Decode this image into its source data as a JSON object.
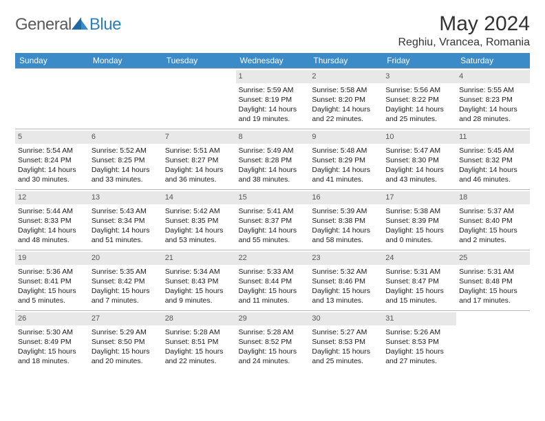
{
  "brand": {
    "part1": "General",
    "part2": "Blue"
  },
  "title": "May 2024",
  "location": "Reghiu, Vrancea, Romania",
  "colors": {
    "header_bg": "#3b8bc9",
    "header_text": "#ffffff",
    "daynum_bg": "#e8e8e8",
    "daynum_text": "#555555",
    "border": "#b8b8b8",
    "logo_gray": "#5a5a5a",
    "logo_blue": "#2a7fbf"
  },
  "weekdays": [
    "Sunday",
    "Monday",
    "Tuesday",
    "Wednesday",
    "Thursday",
    "Friday",
    "Saturday"
  ],
  "weeks": [
    [
      {
        "blank": true
      },
      {
        "blank": true
      },
      {
        "blank": true
      },
      {
        "day": "1",
        "sunrise": "5:59 AM",
        "sunset": "8:19 PM",
        "daylight_a": "Daylight: 14 hours",
        "daylight_b": "and 19 minutes."
      },
      {
        "day": "2",
        "sunrise": "5:58 AM",
        "sunset": "8:20 PM",
        "daylight_a": "Daylight: 14 hours",
        "daylight_b": "and 22 minutes."
      },
      {
        "day": "3",
        "sunrise": "5:56 AM",
        "sunset": "8:22 PM",
        "daylight_a": "Daylight: 14 hours",
        "daylight_b": "and 25 minutes."
      },
      {
        "day": "4",
        "sunrise": "5:55 AM",
        "sunset": "8:23 PM",
        "daylight_a": "Daylight: 14 hours",
        "daylight_b": "and 28 minutes."
      }
    ],
    [
      {
        "day": "5",
        "sunrise": "5:54 AM",
        "sunset": "8:24 PM",
        "daylight_a": "Daylight: 14 hours",
        "daylight_b": "and 30 minutes."
      },
      {
        "day": "6",
        "sunrise": "5:52 AM",
        "sunset": "8:25 PM",
        "daylight_a": "Daylight: 14 hours",
        "daylight_b": "and 33 minutes."
      },
      {
        "day": "7",
        "sunrise": "5:51 AM",
        "sunset": "8:27 PM",
        "daylight_a": "Daylight: 14 hours",
        "daylight_b": "and 36 minutes."
      },
      {
        "day": "8",
        "sunrise": "5:49 AM",
        "sunset": "8:28 PM",
        "daylight_a": "Daylight: 14 hours",
        "daylight_b": "and 38 minutes."
      },
      {
        "day": "9",
        "sunrise": "5:48 AM",
        "sunset": "8:29 PM",
        "daylight_a": "Daylight: 14 hours",
        "daylight_b": "and 41 minutes."
      },
      {
        "day": "10",
        "sunrise": "5:47 AM",
        "sunset": "8:30 PM",
        "daylight_a": "Daylight: 14 hours",
        "daylight_b": "and 43 minutes."
      },
      {
        "day": "11",
        "sunrise": "5:45 AM",
        "sunset": "8:32 PM",
        "daylight_a": "Daylight: 14 hours",
        "daylight_b": "and 46 minutes."
      }
    ],
    [
      {
        "day": "12",
        "sunrise": "5:44 AM",
        "sunset": "8:33 PM",
        "daylight_a": "Daylight: 14 hours",
        "daylight_b": "and 48 minutes."
      },
      {
        "day": "13",
        "sunrise": "5:43 AM",
        "sunset": "8:34 PM",
        "daylight_a": "Daylight: 14 hours",
        "daylight_b": "and 51 minutes."
      },
      {
        "day": "14",
        "sunrise": "5:42 AM",
        "sunset": "8:35 PM",
        "daylight_a": "Daylight: 14 hours",
        "daylight_b": "and 53 minutes."
      },
      {
        "day": "15",
        "sunrise": "5:41 AM",
        "sunset": "8:37 PM",
        "daylight_a": "Daylight: 14 hours",
        "daylight_b": "and 55 minutes."
      },
      {
        "day": "16",
        "sunrise": "5:39 AM",
        "sunset": "8:38 PM",
        "daylight_a": "Daylight: 14 hours",
        "daylight_b": "and 58 minutes."
      },
      {
        "day": "17",
        "sunrise": "5:38 AM",
        "sunset": "8:39 PM",
        "daylight_a": "Daylight: 15 hours",
        "daylight_b": "and 0 minutes."
      },
      {
        "day": "18",
        "sunrise": "5:37 AM",
        "sunset": "8:40 PM",
        "daylight_a": "Daylight: 15 hours",
        "daylight_b": "and 2 minutes."
      }
    ],
    [
      {
        "day": "19",
        "sunrise": "5:36 AM",
        "sunset": "8:41 PM",
        "daylight_a": "Daylight: 15 hours",
        "daylight_b": "and 5 minutes."
      },
      {
        "day": "20",
        "sunrise": "5:35 AM",
        "sunset": "8:42 PM",
        "daylight_a": "Daylight: 15 hours",
        "daylight_b": "and 7 minutes."
      },
      {
        "day": "21",
        "sunrise": "5:34 AM",
        "sunset": "8:43 PM",
        "daylight_a": "Daylight: 15 hours",
        "daylight_b": "and 9 minutes."
      },
      {
        "day": "22",
        "sunrise": "5:33 AM",
        "sunset": "8:44 PM",
        "daylight_a": "Daylight: 15 hours",
        "daylight_b": "and 11 minutes."
      },
      {
        "day": "23",
        "sunrise": "5:32 AM",
        "sunset": "8:46 PM",
        "daylight_a": "Daylight: 15 hours",
        "daylight_b": "and 13 minutes."
      },
      {
        "day": "24",
        "sunrise": "5:31 AM",
        "sunset": "8:47 PM",
        "daylight_a": "Daylight: 15 hours",
        "daylight_b": "and 15 minutes."
      },
      {
        "day": "25",
        "sunrise": "5:31 AM",
        "sunset": "8:48 PM",
        "daylight_a": "Daylight: 15 hours",
        "daylight_b": "and 17 minutes."
      }
    ],
    [
      {
        "day": "26",
        "sunrise": "5:30 AM",
        "sunset": "8:49 PM",
        "daylight_a": "Daylight: 15 hours",
        "daylight_b": "and 18 minutes."
      },
      {
        "day": "27",
        "sunrise": "5:29 AM",
        "sunset": "8:50 PM",
        "daylight_a": "Daylight: 15 hours",
        "daylight_b": "and 20 minutes."
      },
      {
        "day": "28",
        "sunrise": "5:28 AM",
        "sunset": "8:51 PM",
        "daylight_a": "Daylight: 15 hours",
        "daylight_b": "and 22 minutes."
      },
      {
        "day": "29",
        "sunrise": "5:28 AM",
        "sunset": "8:52 PM",
        "daylight_a": "Daylight: 15 hours",
        "daylight_b": "and 24 minutes."
      },
      {
        "day": "30",
        "sunrise": "5:27 AM",
        "sunset": "8:53 PM",
        "daylight_a": "Daylight: 15 hours",
        "daylight_b": "and 25 minutes."
      },
      {
        "day": "31",
        "sunrise": "5:26 AM",
        "sunset": "8:53 PM",
        "daylight_a": "Daylight: 15 hours",
        "daylight_b": "and 27 minutes."
      },
      {
        "blank": true
      }
    ]
  ],
  "labels": {
    "sunrise_prefix": "Sunrise: ",
    "sunset_prefix": "Sunset: "
  }
}
